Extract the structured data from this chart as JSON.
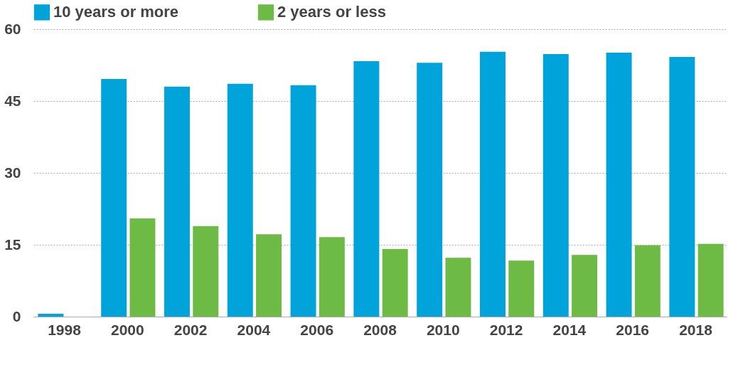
{
  "chart_data": {
    "type": "bar",
    "categories": [
      "1998",
      "2000",
      "2002",
      "2004",
      "2006",
      "2008",
      "2010",
      "2012",
      "2014",
      "2016",
      "2018"
    ],
    "series": [
      {
        "name": "10 years or more",
        "color": "#00a3da",
        "values": [
          0.6,
          49.6,
          48.0,
          48.6,
          48.3,
          53.3,
          53.0,
          55.3,
          54.8,
          55.1,
          54.2
        ]
      },
      {
        "name": "2 years or less",
        "color": "#6dbb45",
        "values": [
          null,
          20.5,
          18.9,
          17.2,
          16.6,
          14.1,
          12.3,
          11.7,
          12.9,
          14.9,
          15.2
        ]
      }
    ],
    "ylim": [
      0,
      60
    ],
    "yticks": [
      0,
      15,
      30,
      45,
      60
    ],
    "grid": "y",
    "legend": "top"
  }
}
